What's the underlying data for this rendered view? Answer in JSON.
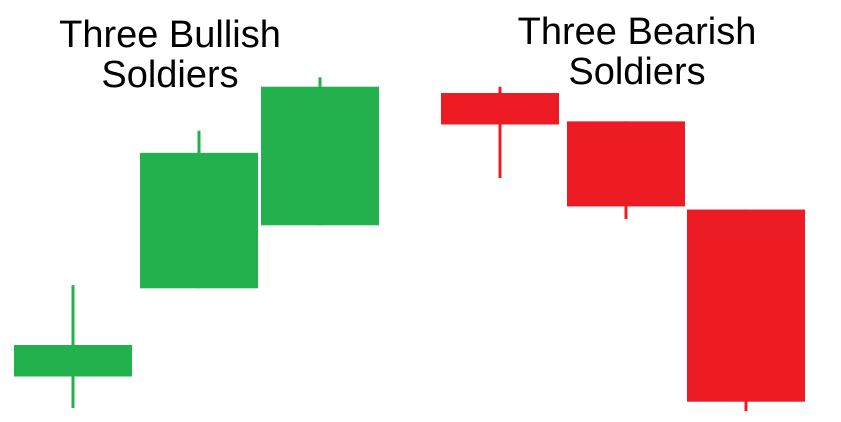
{
  "bullish": {
    "title_line1": "Three Bullish",
    "title_line2": "Soldiers",
    "color": "#22b14c"
  },
  "bearish": {
    "title_line1": "Three Bearish",
    "title_line2": "Soldiers",
    "color": "#ed1c24"
  },
  "candles": {
    "bullish": [
      {
        "open": 1.0,
        "close": 2.0,
        "high": 3.9,
        "low": 0.0
      },
      {
        "open": 3.8,
        "close": 8.1,
        "high": 8.8,
        "low": 3.8
      },
      {
        "open": 5.8,
        "close": 10.2,
        "high": 10.5,
        "low": 5.8
      }
    ],
    "bearish": [
      {
        "open": 10.0,
        "close": 9.0,
        "high": 10.2,
        "low": 7.3
      },
      {
        "open": 9.1,
        "close": 6.4,
        "high": 9.1,
        "low": 6.0
      },
      {
        "open": 6.3,
        "close": 0.2,
        "high": 6.3,
        "low": -0.1
      }
    ]
  }
}
